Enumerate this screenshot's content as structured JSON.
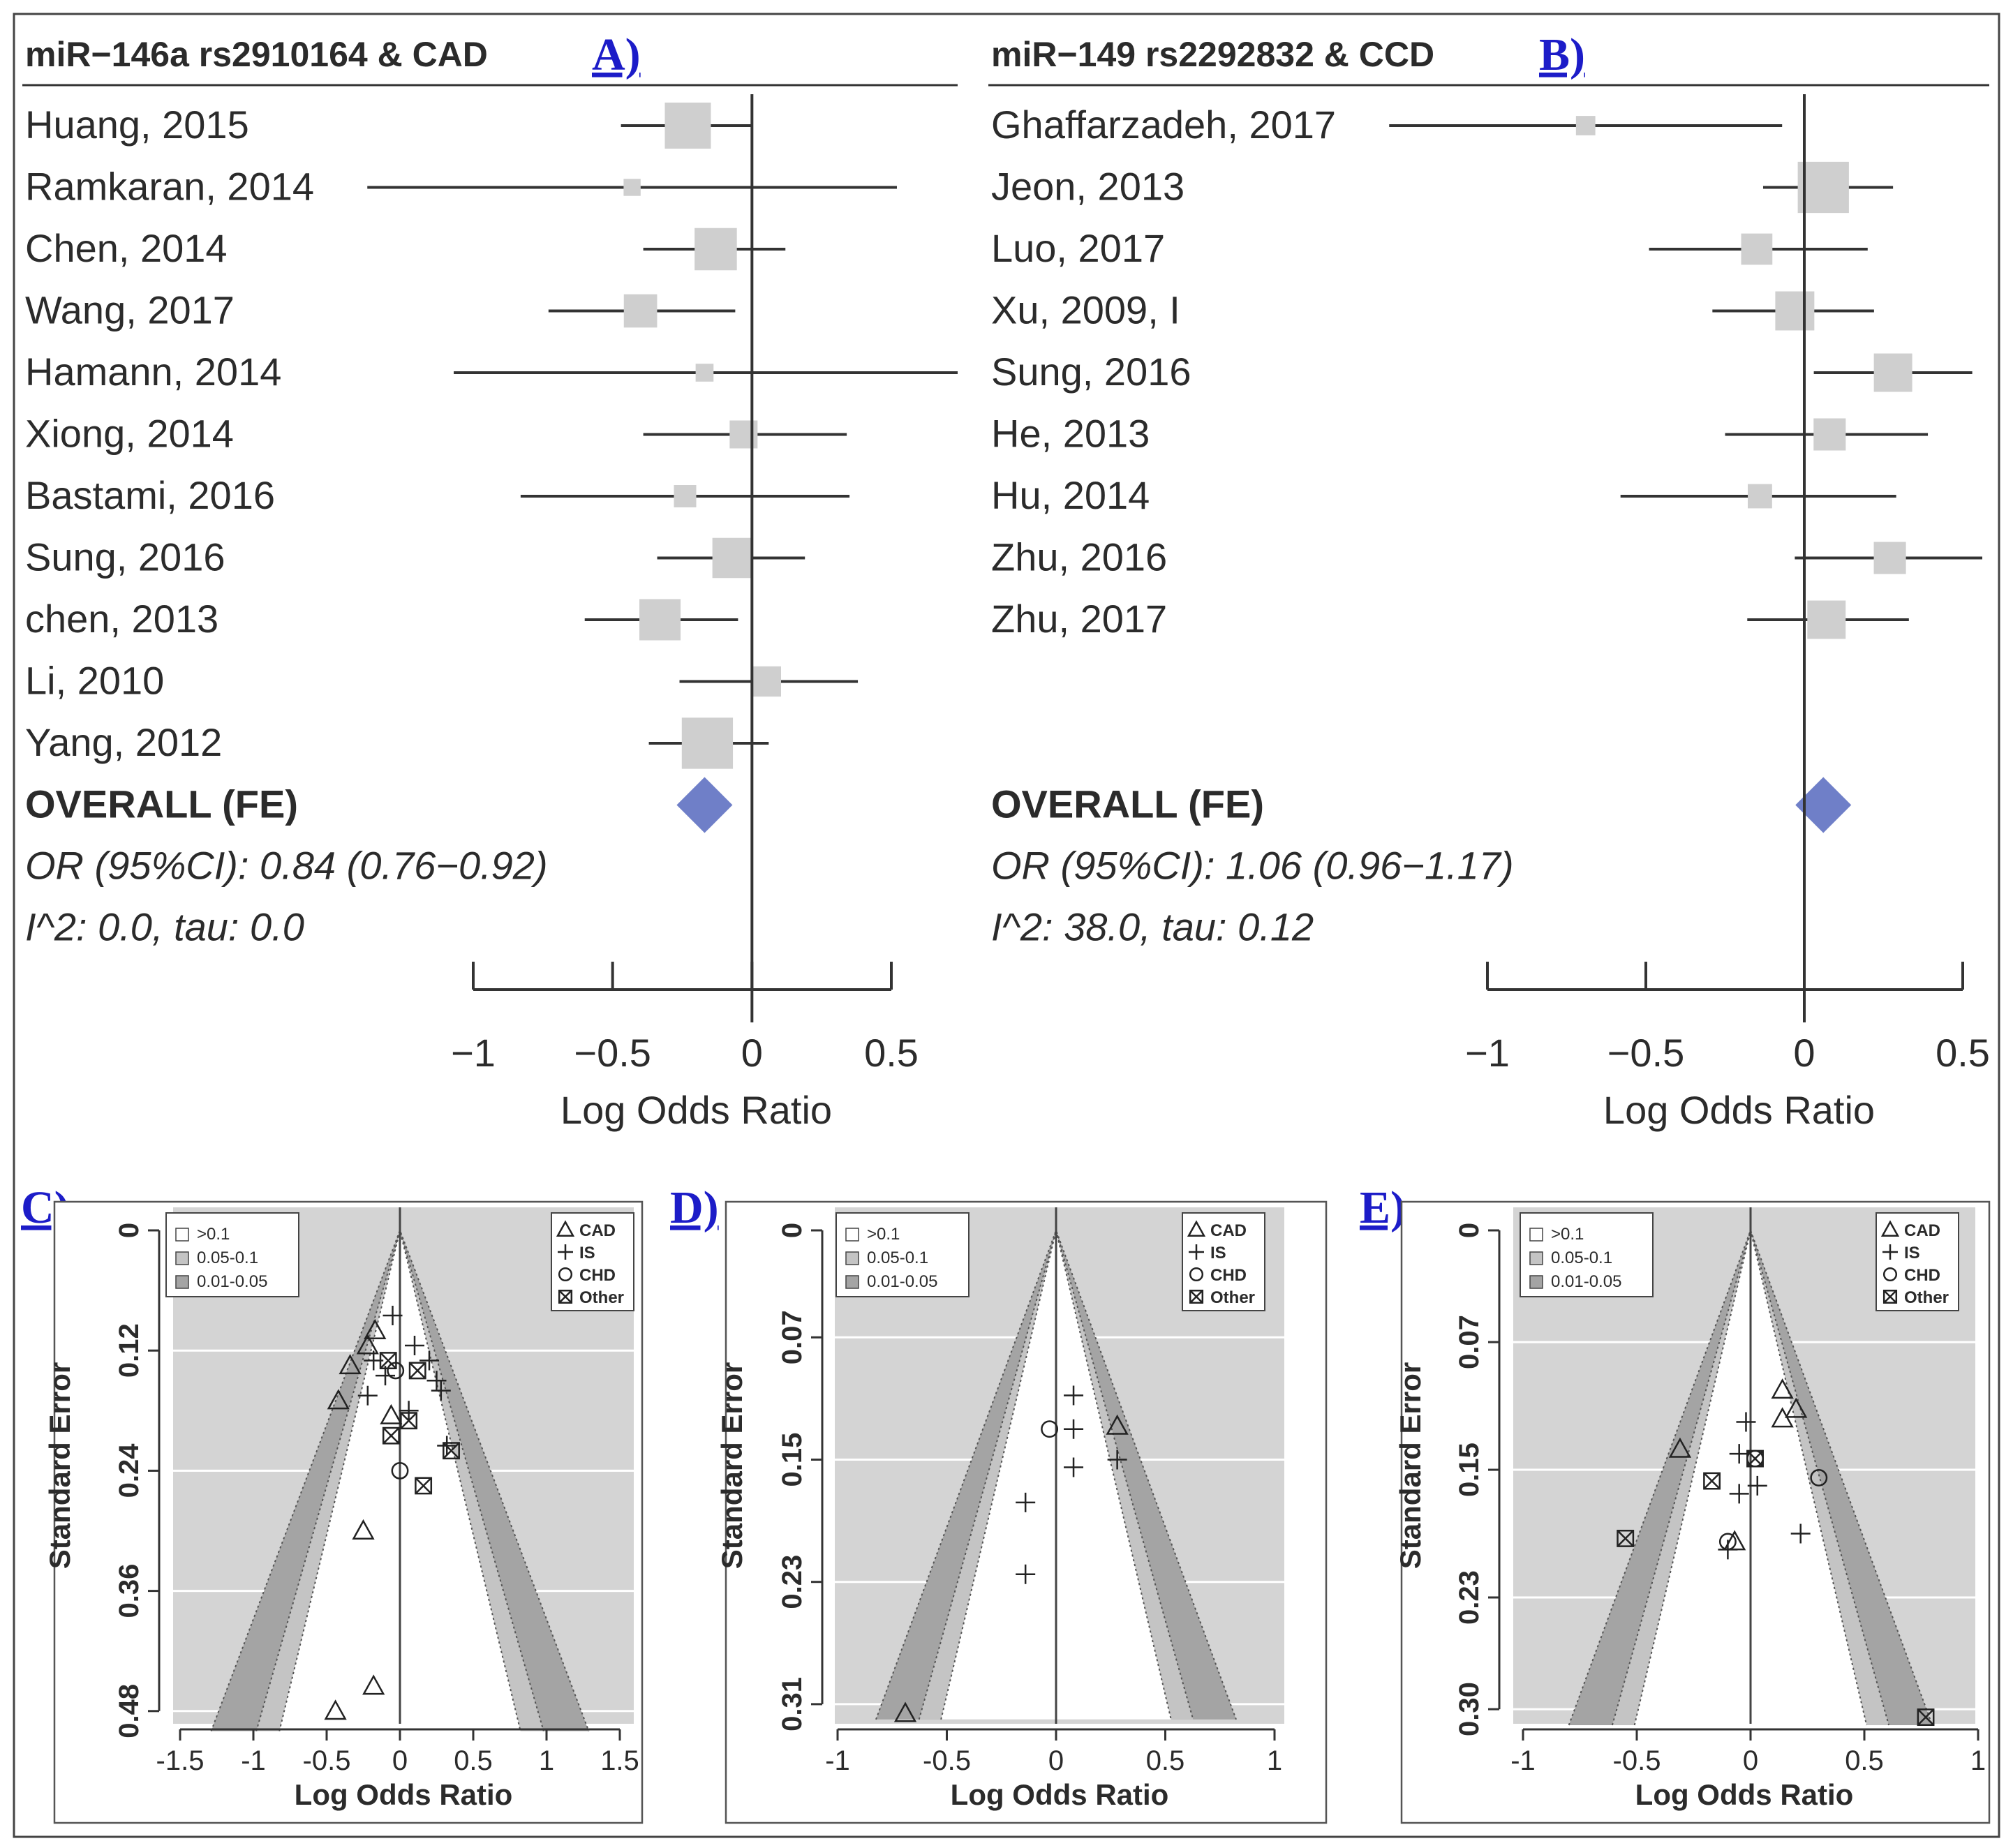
{
  "colors": {
    "box": "#cfcfcf",
    "diamond": "#6f7fc8",
    "line": "#333333",
    "panel_label": "#1c1cc8",
    "funnel_outer": "#d4d4d4",
    "funnel_light": "#c4c4c4",
    "funnel_dark": "#a4a4a4",
    "funnel_inner": "#ffffff"
  },
  "chart_data": [
    {
      "type": "forest",
      "panel": "A)",
      "title": "miR−146a rs2910164 & CAD",
      "xlabel": "Log Odds Ratio",
      "xlim": [
        -1,
        0.5
      ],
      "ticks": [
        -1,
        -0.5,
        0,
        0.5
      ],
      "tick_labels": [
        "−1",
        "−0.5",
        "0",
        "0.5"
      ],
      "studies": [
        {
          "label": "Huang, 2015",
          "lor": -0.23,
          "lo": -0.47,
          "hi": 0.0,
          "weight": 1.0
        },
        {
          "label": "Ramkaran, 2014",
          "lor": -0.43,
          "lo": -1.38,
          "hi": 0.52,
          "weight": 0.04
        },
        {
          "label": "Chen, 2014",
          "lor": -0.13,
          "lo": -0.39,
          "hi": 0.12,
          "weight": 0.8
        },
        {
          "label": "Wang, 2017",
          "lor": -0.4,
          "lo": -0.73,
          "hi": -0.06,
          "weight": 0.42
        },
        {
          "label": "Hamann, 2014",
          "lor": -0.17,
          "lo": -1.07,
          "hi": 0.75,
          "weight": 0.05
        },
        {
          "label": "Xiong, 2014",
          "lor": -0.03,
          "lo": -0.39,
          "hi": 0.34,
          "weight": 0.25
        },
        {
          "label": "Bastami, 2016",
          "lor": -0.24,
          "lo": -0.83,
          "hi": 0.35,
          "weight": 0.12
        },
        {
          "label": "Sung, 2016",
          "lor": -0.07,
          "lo": -0.34,
          "hi": 0.19,
          "weight": 0.7
        },
        {
          "label": "chen, 2013",
          "lor": -0.33,
          "lo": -0.6,
          "hi": -0.05,
          "weight": 0.75
        },
        {
          "label": "Li, 2010",
          "lor": 0.05,
          "lo": -0.26,
          "hi": 0.38,
          "weight": 0.32
        },
        {
          "label": "Yang, 2012",
          "lor": -0.16,
          "lo": -0.37,
          "hi": 0.06,
          "weight": 1.3
        }
      ],
      "overall": {
        "label": "OVERALL (FE)",
        "lor": -0.17,
        "lo": -0.27,
        "hi": -0.08
      },
      "or_text": "OR (95%CI): 0.84 (0.76−0.92)",
      "het_text": "I^2: 0.0, tau: 0.0"
    },
    {
      "type": "forest",
      "panel": "B)",
      "title": "miR−149 rs2292832 & CCD",
      "xlabel": "Log Odds Ratio",
      "xlim": [
        -1,
        0.5
      ],
      "ticks": [
        -1,
        -0.5,
        0,
        0.5
      ],
      "tick_labels": [
        "−1",
        "−0.5",
        "0",
        "0.5"
      ],
      "studies": [
        {
          "label": "Ghaffarzadeh, 2017",
          "lor": -0.69,
          "lo": -1.31,
          "hi": -0.07,
          "weight": 0.07
        },
        {
          "label": "Jeon, 2013",
          "lor": 0.06,
          "lo": -0.13,
          "hi": 0.28,
          "weight": 1.3
        },
        {
          "label": "Luo, 2017",
          "lor": -0.15,
          "lo": -0.49,
          "hi": 0.2,
          "weight": 0.35
        },
        {
          "label": "Xu, 2009, I",
          "lor": -0.03,
          "lo": -0.29,
          "hi": 0.22,
          "weight": 0.65
        },
        {
          "label": "Sung, 2016",
          "lor": 0.28,
          "lo": 0.03,
          "hi": 0.53,
          "weight": 0.62
        },
        {
          "label": "He, 2013",
          "lor": 0.08,
          "lo": -0.25,
          "hi": 0.39,
          "weight": 0.38
        },
        {
          "label": "Hu, 2014",
          "lor": -0.14,
          "lo": -0.58,
          "hi": 0.29,
          "weight": 0.16
        },
        {
          "label": "Zhu, 2016",
          "lor": 0.27,
          "lo": -0.03,
          "hi": 0.58,
          "weight": 0.38
        },
        {
          "label": "Zhu, 2017",
          "lor": 0.07,
          "lo": -0.18,
          "hi": 0.33,
          "weight": 0.62
        }
      ],
      "overall": {
        "label": "OVERALL (FE)",
        "lor": 0.06,
        "lo": -0.04,
        "hi": 0.16
      },
      "or_text": "OR (95%CI): 1.06 (0.96−1.17)",
      "het_text": "I^2: 38.0, tau: 0.12"
    },
    {
      "type": "funnel",
      "panel": "C)",
      "xlabel": "Log Odds Ratio",
      "ylabel": "Standard Error",
      "xlim": [
        -1.7,
        1.7
      ],
      "ylim": [
        0,
        0.5
      ],
      "x_ticks": [
        -1.5,
        -1,
        -0.5,
        0,
        0.5,
        1,
        1.5
      ],
      "x_tick_labels": [
        "-1.5",
        "-1",
        "-0.5",
        "0",
        "0.5",
        "1",
        "1.5"
      ],
      "y_ticks": [
        0,
        0.12,
        0.24,
        0.36,
        0.48
      ],
      "y_tick_labels": [
        "0",
        "0.12",
        "0.24",
        "0.36",
        "0.48"
      ],
      "contour_legend": [
        ">0.1",
        "0.05-0.1",
        "0.01-0.05"
      ],
      "symbol_legend": [
        "CAD",
        "IS",
        "CHD",
        "Other"
      ],
      "points": [
        {
          "x": -0.17,
          "y": 0.1,
          "s": "CAD"
        },
        {
          "x": -0.22,
          "y": 0.115,
          "s": "CAD"
        },
        {
          "x": -0.34,
          "y": 0.135,
          "s": "CAD"
        },
        {
          "x": -0.42,
          "y": 0.17,
          "s": "CAD"
        },
        {
          "x": -0.06,
          "y": 0.185,
          "s": "CAD"
        },
        {
          "x": -0.25,
          "y": 0.3,
          "s": "CAD"
        },
        {
          "x": -0.18,
          "y": 0.455,
          "s": "CAD"
        },
        {
          "x": -0.44,
          "y": 0.48,
          "s": "CAD"
        },
        {
          "x": -0.05,
          "y": 0.085,
          "s": "IS"
        },
        {
          "x": 0.1,
          "y": 0.115,
          "s": "IS"
        },
        {
          "x": -0.18,
          "y": 0.13,
          "s": "IS"
        },
        {
          "x": 0.2,
          "y": 0.13,
          "s": "IS"
        },
        {
          "x": 0.25,
          "y": 0.15,
          "s": "IS"
        },
        {
          "x": 0.28,
          "y": 0.16,
          "s": "IS"
        },
        {
          "x": -0.22,
          "y": 0.165,
          "s": "IS"
        },
        {
          "x": -0.1,
          "y": 0.145,
          "s": "IS"
        },
        {
          "x": 0.06,
          "y": 0.18,
          "s": "IS"
        },
        {
          "x": 0.32,
          "y": 0.215,
          "s": "IS"
        },
        {
          "x": -0.03,
          "y": 0.14,
          "s": "CHD"
        },
        {
          "x": 0.0,
          "y": 0.24,
          "s": "CHD"
        },
        {
          "x": -0.08,
          "y": 0.13,
          "s": "Other"
        },
        {
          "x": 0.12,
          "y": 0.14,
          "s": "Other"
        },
        {
          "x": 0.06,
          "y": 0.19,
          "s": "Other"
        },
        {
          "x": -0.06,
          "y": 0.205,
          "s": "Other"
        },
        {
          "x": 0.35,
          "y": 0.22,
          "s": "Other"
        },
        {
          "x": 0.16,
          "y": 0.255,
          "s": "Other"
        }
      ]
    },
    {
      "type": "funnel",
      "panel": "D)",
      "xlabel": "Log Odds Ratio",
      "ylabel": "Standard Error",
      "xlim": [
        -1,
        1
      ],
      "ylim": [
        0,
        0.32
      ],
      "x_ticks": [
        -1,
        -0.5,
        0,
        0.5,
        1
      ],
      "x_tick_labels": [
        "-1",
        "-0.5",
        "0",
        "0.5",
        "1"
      ],
      "y_ticks": [
        0,
        0.07,
        0.15,
        0.23,
        0.31
      ],
      "y_tick_labels": [
        "0",
        "0.07",
        "0.15",
        "0.23",
        "0.31"
      ],
      "contour_legend": [
        ">0.1",
        "0.05-0.1",
        "0.01-0.05"
      ],
      "symbol_legend": [
        "CAD",
        "IS",
        "CHD",
        "Other"
      ],
      "points": [
        {
          "x": -0.69,
          "y": 0.316,
          "s": "CAD"
        },
        {
          "x": 0.28,
          "y": 0.128,
          "s": "CAD"
        },
        {
          "x": 0.08,
          "y": 0.108,
          "s": "IS"
        },
        {
          "x": 0.08,
          "y": 0.13,
          "s": "IS"
        },
        {
          "x": 0.28,
          "y": 0.15,
          "s": "IS"
        },
        {
          "x": 0.08,
          "y": 0.155,
          "s": "IS"
        },
        {
          "x": -0.14,
          "y": 0.178,
          "s": "IS"
        },
        {
          "x": -0.14,
          "y": 0.225,
          "s": "IS"
        },
        {
          "x": -0.03,
          "y": 0.13,
          "s": "CHD"
        }
      ]
    },
    {
      "type": "funnel",
      "panel": "E)",
      "xlabel": "Log Odds Ratio",
      "ylabel": "Standard Error",
      "xlim": [
        -1.05,
        1.05
      ],
      "ylim": [
        0,
        0.31
      ],
      "x_ticks": [
        -1,
        -0.5,
        0,
        0.5,
        1
      ],
      "x_tick_labels": [
        "-1",
        "-0.5",
        "0",
        "0.5",
        "1"
      ],
      "y_ticks": [
        0,
        0.07,
        0.15,
        0.23,
        0.3
      ],
      "y_tick_labels": [
        "0",
        "0.07",
        "0.15",
        "0.23",
        "0.30"
      ],
      "contour_legend": [
        ">0.1",
        "0.05-0.1",
        "0.01-0.05"
      ],
      "symbol_legend": [
        "CAD",
        "IS",
        "CHD",
        "Other"
      ],
      "points": [
        {
          "x": 0.14,
          "y": 0.1,
          "s": "CAD"
        },
        {
          "x": 0.2,
          "y": 0.112,
          "s": "CAD"
        },
        {
          "x": 0.14,
          "y": 0.118,
          "s": "CAD"
        },
        {
          "x": -0.31,
          "y": 0.137,
          "s": "CAD"
        },
        {
          "x": -0.07,
          "y": 0.195,
          "s": "CAD"
        },
        {
          "x": -0.02,
          "y": 0.12,
          "s": "IS"
        },
        {
          "x": -0.05,
          "y": 0.14,
          "s": "IS"
        },
        {
          "x": 0.03,
          "y": 0.16,
          "s": "IS"
        },
        {
          "x": -0.05,
          "y": 0.165,
          "s": "IS"
        },
        {
          "x": 0.22,
          "y": 0.19,
          "s": "IS"
        },
        {
          "x": -0.1,
          "y": 0.2,
          "s": "IS"
        },
        {
          "x": 0.02,
          "y": 0.143,
          "s": "CHD"
        },
        {
          "x": 0.3,
          "y": 0.155,
          "s": "CHD"
        },
        {
          "x": -0.1,
          "y": 0.195,
          "s": "CHD"
        },
        {
          "x": 0.02,
          "y": 0.143,
          "s": "Other"
        },
        {
          "x": -0.17,
          "y": 0.157,
          "s": "Other"
        },
        {
          "x": -0.55,
          "y": 0.193,
          "s": "Other"
        },
        {
          "x": 0.77,
          "y": 0.305,
          "s": "Other"
        }
      ]
    }
  ]
}
